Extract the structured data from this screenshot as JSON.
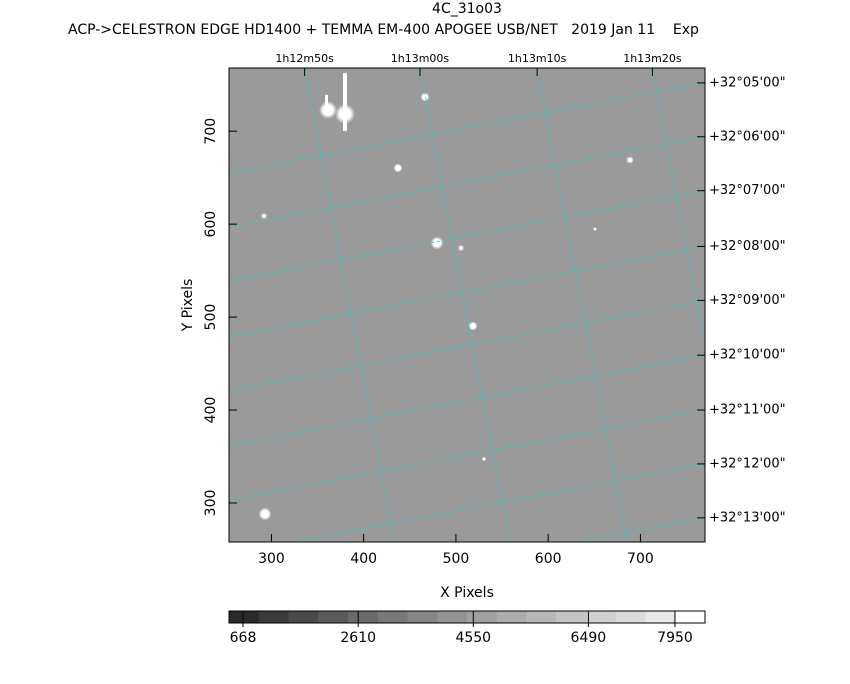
{
  "chart_data": {
    "type": "image",
    "title": "4C_31o03",
    "subtitle": "ACP->CELESTRON EDGE HD1400 + TEMMA EM-400 APOGEE USB/NET   2019 Jan 11    Exp",
    "xlabel": "X Pixels",
    "ylabel": "Y Pixels",
    "xlim": [
      254,
      770
    ],
    "ylim": [
      258,
      768
    ],
    "xticks": [
      300,
      400,
      500,
      600,
      700
    ],
    "yticks": [
      300,
      400,
      500,
      600,
      700
    ],
    "ra_ticks": [
      {
        "value": 336,
        "label": "1h12m50s"
      },
      {
        "value": 461,
        "label": "1h13m00s"
      },
      {
        "value": 588,
        "label": "1h13m10s"
      },
      {
        "value": 713,
        "label": "1h13m20s"
      }
    ],
    "dec_ticks": [
      {
        "value": 752,
        "label": "+32°05'00\""
      },
      {
        "value": 694,
        "label": "+32°06'00\""
      },
      {
        "value": 636,
        "label": "+32°07'00\""
      },
      {
        "value": 576,
        "label": "+32°08'00\""
      },
      {
        "value": 518,
        "label": "+32°09'00\""
      },
      {
        "value": 459,
        "label": "+32°10'00\""
      },
      {
        "value": 400,
        "label": "+32°11'00\""
      },
      {
        "value": 342,
        "label": "+32°12'00\""
      },
      {
        "value": 284,
        "label": "+32°13'00\""
      }
    ],
    "grid": true,
    "grid_color": "#22d4d4",
    "background": "#9a9a9a",
    "colorbar": {
      "lim": [
        432,
        8456
      ],
      "ticks": [
        668,
        2610,
        4550,
        6490,
        7950
      ],
      "colors": [
        "#2a2a2a",
        "#3a3a3a",
        "#4a4a4a",
        "#5a5a5a",
        "#6a6a6a",
        "#787878",
        "#868686",
        "#939393",
        "#a0a0a0",
        "#acacac",
        "#b8b8b8",
        "#c4c4c4",
        "#d0d0d0",
        "#dcdcdc",
        "#e8e8e8",
        "#ffffff"
      ]
    }
  }
}
